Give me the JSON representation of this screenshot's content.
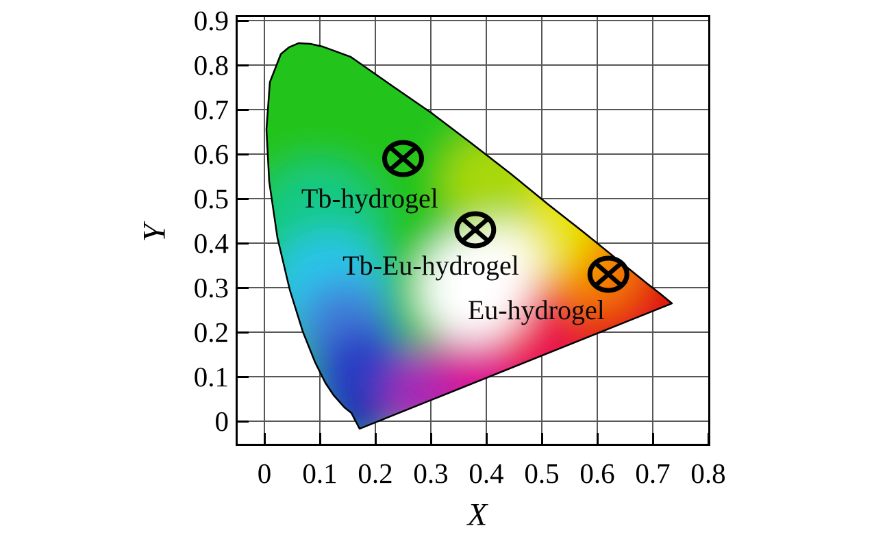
{
  "figure": {
    "description": "CIE 1931 chromaticity diagram with three emission color points"
  },
  "axes": {
    "x_title": "X",
    "y_title": "Y",
    "x_tick_labels": [
      "0",
      "0.1",
      "0.2",
      "0.3",
      "0.4",
      "0.5",
      "0.6",
      "0.7",
      "0.8"
    ],
    "y_tick_labels": [
      "0",
      "0.1",
      "0.2",
      "0.3",
      "0.4",
      "0.5",
      "0.6",
      "0.7",
      "0.8",
      "0.9"
    ]
  },
  "chart_data": {
    "type": "scatter",
    "subtype": "cie-1931-chromaticity-diagram",
    "xlabel": "X",
    "ylabel": "Y",
    "xlim": [
      -0.05,
      0.8
    ],
    "ylim": [
      -0.05,
      0.9
    ],
    "x_ticks": [
      0,
      0.1,
      0.2,
      0.3,
      0.4,
      0.5,
      0.6,
      0.7,
      0.8
    ],
    "y_ticks": [
      0,
      0.1,
      0.2,
      0.3,
      0.4,
      0.5,
      0.6,
      0.7,
      0.8,
      0.9
    ],
    "grid": true,
    "legend": "none",
    "marker": "circled-x",
    "marker_color": "#000000",
    "points": [
      {
        "label": "Tb-hydrogel",
        "x": 0.25,
        "y": 0.59,
        "label_anchor_x": 0.19,
        "label_anchor_y": 0.5
      },
      {
        "label": "Tb-Eu-hydrogel",
        "x": 0.38,
        "y": 0.43,
        "label_anchor_x": 0.3,
        "label_anchor_y": 0.35
      },
      {
        "label": "Eu-hydrogel",
        "x": 0.62,
        "y": 0.33,
        "label_anchor_x": 0.49,
        "label_anchor_y": 0.25
      }
    ]
  },
  "colors": {
    "frame": "#000000",
    "grid": "#575757",
    "text": "#000000",
    "gamut_outline": "#000000",
    "gamut_palette": [
      "#23c41b",
      "#12c987",
      "#2ac4ea",
      "#2b3ec4",
      "#2430b0",
      "#a82ab4",
      "#dc1795",
      "#ea1253",
      "#dc1010",
      "#f57d05",
      "#e8e303",
      "#ffffff"
    ]
  }
}
